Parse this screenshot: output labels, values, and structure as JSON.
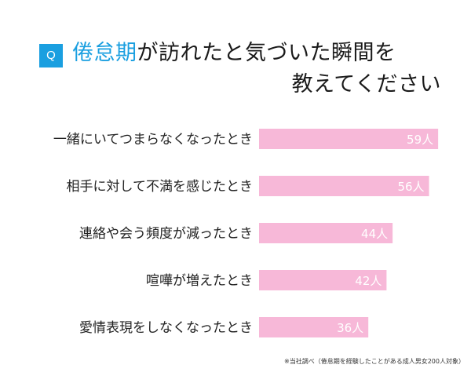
{
  "question": {
    "badge": "Q",
    "title_highlight": "倦怠期",
    "title_rest_line1": "が訪れたと気づいた瞬間を",
    "title_line2": "教えてください"
  },
  "chart_data": {
    "type": "bar",
    "orientation": "horizontal",
    "categories": [
      "一緒にいてつまらなくなったとき",
      "相手に対して不満を感じたとき",
      "連絡や会う頻度が減ったとき",
      "喧嘩が増えたとき",
      "愛情表現をしなくなったとき"
    ],
    "values": [
      59,
      56,
      44,
      42,
      36
    ],
    "value_labels": [
      "59人",
      "56人",
      "44人",
      "42人",
      "36人"
    ],
    "unit": "人",
    "xlim": [
      0,
      60
    ],
    "grid": false,
    "bar_color": "#f7b8d8"
  },
  "footnote": "※当社調べ（倦怠期を経験したことがある成人男女200人対象）"
}
